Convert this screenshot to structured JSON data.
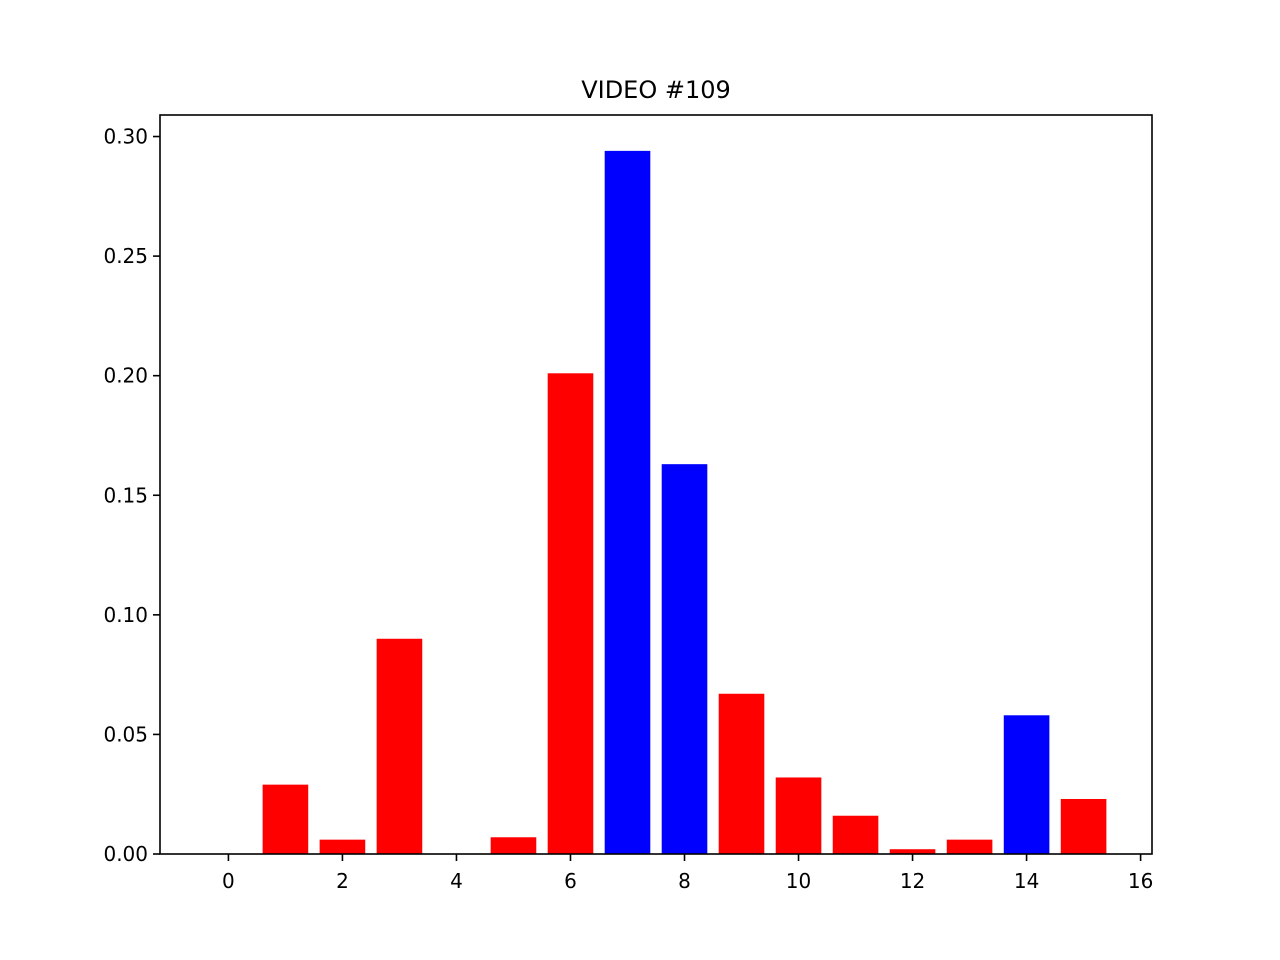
{
  "chart_data": {
    "type": "bar",
    "title": "VIDEO #109",
    "xlabel": "",
    "ylabel": "",
    "x": [
      0,
      1,
      2,
      3,
      4,
      5,
      6,
      7,
      8,
      9,
      10,
      11,
      12,
      13,
      14,
      15
    ],
    "values": [
      0.0,
      0.029,
      0.006,
      0.09,
      0.0,
      0.007,
      0.201,
      0.294,
      0.163,
      0.067,
      0.032,
      0.016,
      0.002,
      0.006,
      0.058,
      0.023
    ],
    "bar_colors": [
      "#ff0000",
      "#ff0000",
      "#ff0000",
      "#ff0000",
      "#ff0000",
      "#ff0000",
      "#ff0000",
      "#0000ff",
      "#0000ff",
      "#ff0000",
      "#ff0000",
      "#ff0000",
      "#ff0000",
      "#ff0000",
      "#0000ff",
      "#ff0000"
    ],
    "xlim": [
      -1.2,
      16.2
    ],
    "ylim": [
      0,
      0.309
    ],
    "xticks": [
      0,
      2,
      4,
      6,
      8,
      10,
      12,
      14,
      16
    ],
    "xtick_labels": [
      "0",
      "2",
      "4",
      "6",
      "8",
      "10",
      "12",
      "14",
      "16"
    ],
    "yticks": [
      0.0,
      0.05,
      0.1,
      0.15,
      0.2,
      0.25,
      0.3
    ],
    "ytick_labels": [
      "0.00",
      "0.05",
      "0.10",
      "0.15",
      "0.20",
      "0.25",
      "0.30"
    ],
    "grid": false,
    "legend": "none"
  }
}
